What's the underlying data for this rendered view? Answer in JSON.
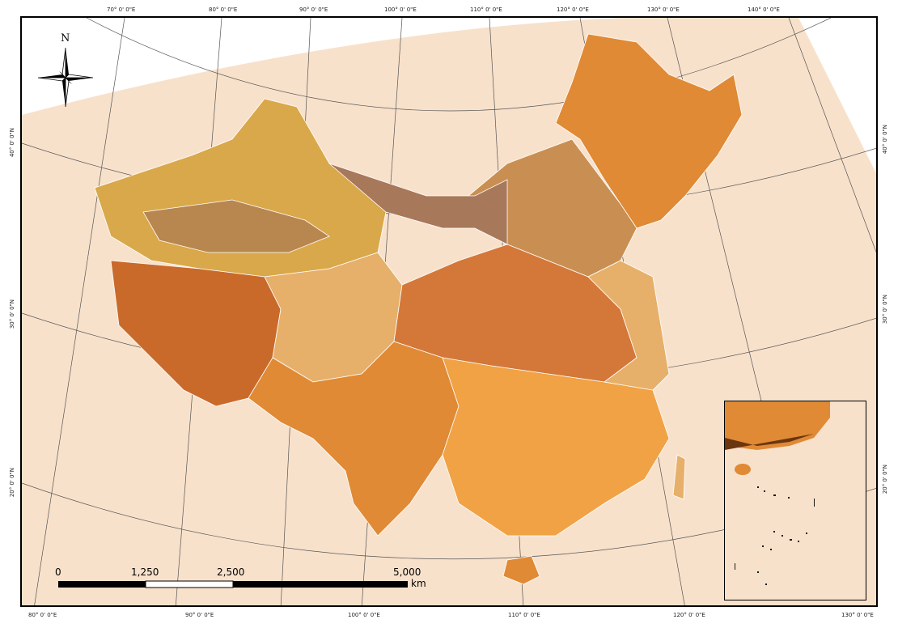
{
  "map": {
    "background_color": "#f8e1cb",
    "land_palette": [
      "#c96a2b",
      "#e08a35",
      "#d9a84a",
      "#c98f52",
      "#e6b06a",
      "#b8864f",
      "#f0a245",
      "#d4783a",
      "#a8785a",
      "#e9c89a"
    ],
    "boundary_color": "#ffffff"
  },
  "graticule": {
    "top_labels": [
      "70° 0' 0\"E",
      "80° 0' 0\"E",
      "90° 0' 0\"E",
      "100° 0' 0\"E",
      "110° 0' 0\"E",
      "120° 0' 0\"E",
      "130° 0' 0\"E",
      "140° 0' 0\"E"
    ],
    "bottom_labels": [
      "80° 0' 0\"E",
      "90° 0' 0\"E",
      "100° 0' 0\"E",
      "110° 0' 0\"E",
      "120° 0' 0\"E",
      "130° 0' 0\"E"
    ],
    "left_labels": [
      "40° 0' 0\"N",
      "30° 0' 0\"N",
      "20° 0' 0\"N"
    ],
    "right_labels": [
      "40° 0' 0\"N",
      "30° 0' 0\"N",
      "20° 0' 0\"N"
    ]
  },
  "north_arrow": {
    "label": "N",
    "icon": "compass-rose-icon"
  },
  "scale_bar": {
    "labels": [
      "0",
      "1,250",
      "2,500",
      "5,000"
    ],
    "unit": "km"
  },
  "inset": {
    "icon": "south-china-sea-inset"
  }
}
